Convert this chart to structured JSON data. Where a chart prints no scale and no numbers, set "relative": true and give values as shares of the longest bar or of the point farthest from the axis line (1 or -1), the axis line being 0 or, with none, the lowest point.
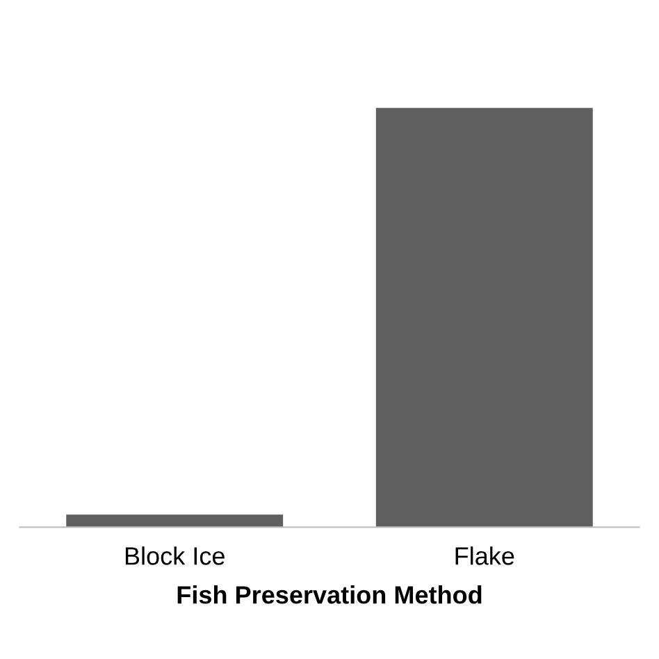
{
  "chart_data": {
    "type": "bar",
    "relative": true,
    "xlabel": "Fish Preservation Method",
    "categories": [
      "Block Ice",
      "Flake"
    ],
    "values": [
      0.03,
      1
    ],
    "color": "#5f5f5f",
    "grid": false,
    "legend": false
  }
}
